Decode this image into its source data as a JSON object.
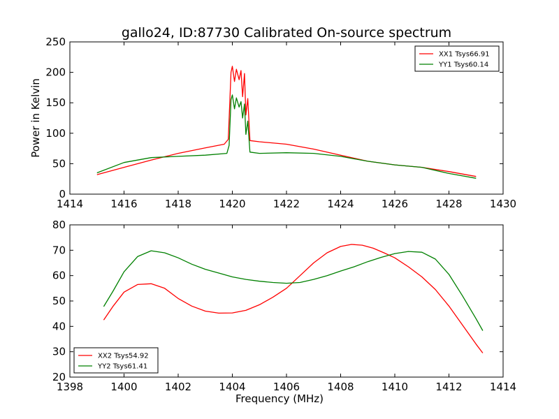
{
  "figure": {
    "title": "gallo24, ID:87730 Calibrated On-source spectrum"
  },
  "chart_data": [
    {
      "type": "line",
      "title": "gallo24, ID:87730 Calibrated On-source spectrum",
      "xlabel": "",
      "ylabel": "Power in Kelvin",
      "xlim": [
        1414,
        1430
      ],
      "ylim": [
        0,
        250
      ],
      "xticks": [
        1414,
        1416,
        1418,
        1420,
        1422,
        1424,
        1426,
        1428,
        1430
      ],
      "yticks": [
        0,
        50,
        100,
        150,
        200,
        250
      ],
      "grid": false,
      "legend_position": "top-right",
      "series": [
        {
          "name": "XX1 Tsys66.91",
          "color": "#ff0000",
          "x": [
            1415.0,
            1416.0,
            1417.0,
            1418.0,
            1419.0,
            1419.7,
            1419.85,
            1419.95,
            1420.0,
            1420.08,
            1420.15,
            1420.25,
            1420.32,
            1420.38,
            1420.45,
            1420.5,
            1420.57,
            1420.65,
            1421.0,
            1422.0,
            1423.0,
            1424.0,
            1425.0,
            1426.0,
            1427.0,
            1428.0,
            1429.0
          ],
          "y": [
            32,
            44,
            56,
            67,
            76,
            82,
            90,
            200,
            210,
            185,
            205,
            188,
            203,
            160,
            198,
            130,
            157,
            88,
            86,
            82,
            74,
            64,
            54,
            48,
            44,
            37,
            29
          ]
        },
        {
          "name": "YY1 Tsys60.14",
          "color": "#008000",
          "x": [
            1415.0,
            1416.0,
            1417.0,
            1418.0,
            1419.0,
            1419.8,
            1419.88,
            1419.95,
            1420.0,
            1420.08,
            1420.15,
            1420.25,
            1420.32,
            1420.38,
            1420.45,
            1420.5,
            1420.57,
            1420.65,
            1421.0,
            1422.0,
            1423.0,
            1424.0,
            1425.0,
            1426.0,
            1427.0,
            1428.0,
            1429.0
          ],
          "y": [
            35,
            52,
            60,
            62,
            64,
            67,
            80,
            155,
            163,
            140,
            158,
            143,
            152,
            125,
            148,
            98,
            120,
            69,
            67,
            68,
            67,
            62,
            54,
            48,
            44,
            34,
            26
          ]
        }
      ]
    },
    {
      "type": "line",
      "title": "",
      "xlabel": "Frequency (MHz)",
      "ylabel": "",
      "xlim": [
        1398,
        1414
      ],
      "ylim": [
        20,
        80
      ],
      "xticks": [
        1398,
        1400,
        1402,
        1404,
        1406,
        1408,
        1410,
        1412,
        1414
      ],
      "yticks": [
        20,
        30,
        40,
        50,
        60,
        70,
        80
      ],
      "grid": false,
      "legend_position": "bottom-left",
      "series": [
        {
          "name": "XX2 Tsys54.92",
          "color": "#ff0000",
          "x": [
            1399.25,
            1399.6,
            1400.0,
            1400.5,
            1401.0,
            1401.5,
            1402.0,
            1402.5,
            1403.0,
            1403.5,
            1404.0,
            1404.5,
            1405.0,
            1405.5,
            1406.0,
            1406.5,
            1407.0,
            1407.5,
            1408.0,
            1408.4,
            1408.8,
            1409.2,
            1409.6,
            1410.0,
            1410.5,
            1411.0,
            1411.5,
            1412.0,
            1412.5,
            1413.0,
            1413.25
          ],
          "y": [
            42.5,
            48,
            53.5,
            56.5,
            56.8,
            55,
            51,
            48,
            46,
            45.2,
            45.3,
            46.3,
            48.5,
            51.5,
            55,
            60,
            65,
            69,
            71.5,
            72.3,
            72,
            70.8,
            69,
            67,
            63.5,
            59.5,
            54.5,
            48,
            40.5,
            33,
            29.5
          ]
        },
        {
          "name": "YY2 Tsys61.41",
          "color": "#008000",
          "x": [
            1399.25,
            1399.6,
            1400.0,
            1400.5,
            1401.0,
            1401.5,
            1402.0,
            1402.5,
            1403.0,
            1403.5,
            1404.0,
            1404.5,
            1405.0,
            1405.5,
            1406.0,
            1406.5,
            1407.0,
            1407.5,
            1408.0,
            1408.5,
            1409.0,
            1409.5,
            1410.0,
            1410.5,
            1411.0,
            1411.5,
            1412.0,
            1412.5,
            1413.0,
            1413.25
          ],
          "y": [
            47.8,
            54,
            61.5,
            67.5,
            69.8,
            69,
            67,
            64.5,
            62.5,
            61,
            59.5,
            58.5,
            57.8,
            57.3,
            57,
            57.3,
            58.5,
            60,
            61.8,
            63.5,
            65.5,
            67.2,
            68.7,
            69.5,
            69.2,
            66.5,
            60.5,
            52,
            43,
            38.3
          ]
        }
      ]
    }
  ]
}
